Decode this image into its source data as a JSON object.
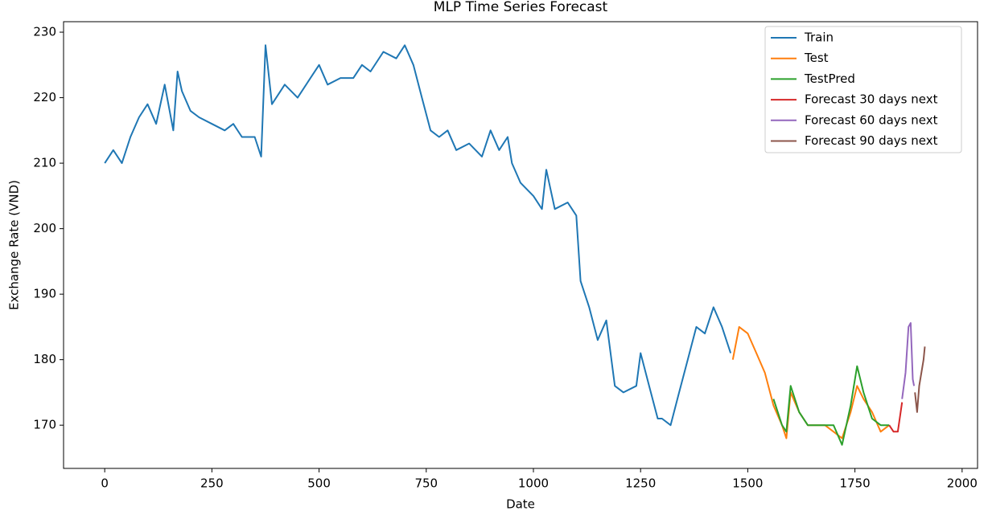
{
  "chart_data": {
    "type": "line",
    "title": "MLP Time Series Forecast",
    "x_label": "Date",
    "y_label": "Exchange Rate (VND)",
    "xlim": [
      -96,
      2036
    ],
    "ylim": [
      163.4,
      231.6
    ],
    "xticks": [
      0,
      250,
      500,
      750,
      1000,
      1250,
      1500,
      1750,
      2000
    ],
    "yticks": [
      170,
      180,
      190,
      200,
      210,
      220,
      230
    ],
    "legend": "upper right",
    "series": [
      {
        "name": "Train",
        "color": "#1f77b4",
        "x": [
          0,
          20,
          40,
          60,
          80,
          100,
          120,
          140,
          160,
          170,
          180,
          200,
          220,
          250,
          280,
          300,
          320,
          350,
          365,
          375,
          390,
          420,
          450,
          480,
          500,
          520,
          550,
          580,
          600,
          620,
          650,
          680,
          700,
          720,
          740,
          760,
          780,
          800,
          820,
          850,
          880,
          900,
          920,
          940,
          950,
          970,
          1000,
          1020,
          1030,
          1050,
          1080,
          1100,
          1110,
          1130,
          1150,
          1170,
          1190,
          1210,
          1240,
          1250,
          1270,
          1290,
          1300,
          1320,
          1340,
          1360,
          1380,
          1400,
          1420,
          1440,
          1460
        ],
        "values": [
          210,
          212,
          210,
          214,
          217,
          219,
          216,
          222,
          215,
          224,
          221,
          218,
          217,
          216,
          215,
          216,
          214,
          214,
          211,
          228,
          219,
          222,
          220,
          223,
          225,
          222,
          223,
          223,
          225,
          224,
          227,
          226,
          228,
          225,
          220,
          215,
          214,
          215,
          212,
          213,
          211,
          215,
          212,
          214,
          210,
          207,
          205,
          203,
          209,
          203,
          204,
          202,
          192,
          188,
          183,
          186,
          176,
          175,
          176,
          181,
          176,
          171,
          171,
          170,
          175,
          180,
          185,
          184,
          188,
          185,
          181
        ]
      },
      {
        "name": "Test",
        "color": "#ff7f0e",
        "x": [
          1465,
          1480,
          1500,
          1520,
          1540,
          1560,
          1580,
          1590,
          1600,
          1620,
          1640,
          1660,
          1680,
          1700,
          1720,
          1740,
          1755,
          1770,
          1790,
          1810,
          1830
        ],
        "values": [
          180,
          185,
          184,
          181,
          178,
          173,
          170,
          168,
          175,
          172,
          170,
          170,
          170,
          169,
          168,
          172,
          176,
          174,
          172,
          169,
          170
        ]
      },
      {
        "name": "TestPred",
        "color": "#2ca02c",
        "x": [
          1560,
          1580,
          1590,
          1600,
          1620,
          1640,
          1660,
          1680,
          1700,
          1720,
          1740,
          1755,
          1770,
          1790,
          1810,
          1830
        ],
        "values": [
          174,
          170,
          169,
          176,
          172,
          170,
          170,
          170,
          170,
          167,
          173,
          179,
          175,
          171,
          170,
          170
        ]
      },
      {
        "name": "Forecast 30 days next",
        "color": "#d62728",
        "x": [
          1830,
          1840,
          1850,
          1860
        ],
        "values": [
          170,
          169,
          169,
          173.5
        ]
      },
      {
        "name": "Forecast 60 days next",
        "color": "#9467bd",
        "x": [
          1860,
          1868,
          1875,
          1880,
          1885,
          1888
        ],
        "values": [
          174,
          178,
          185,
          185.6,
          177,
          176
        ]
      },
      {
        "name": "Forecast 90 days next",
        "color": "#8c564b",
        "x": [
          1890,
          1895,
          1900,
          1910,
          1913
        ],
        "values": [
          175,
          172,
          176,
          180,
          182
        ]
      }
    ]
  }
}
